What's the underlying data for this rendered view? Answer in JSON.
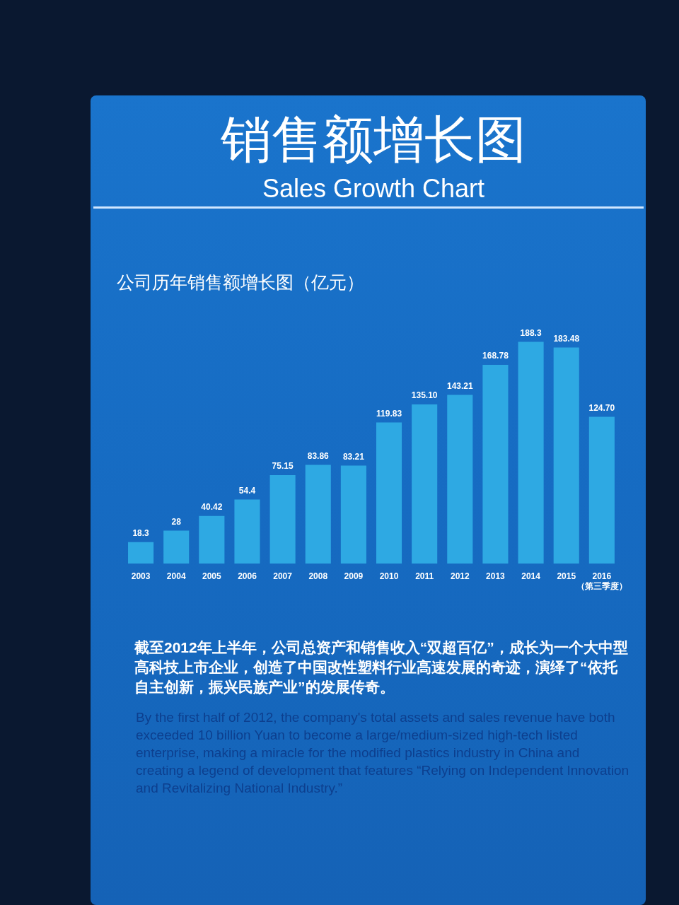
{
  "chart_data": {
    "type": "bar",
    "title": "销售额增长图",
    "subtitle": "Sales Growth Chart",
    "categories": [
      "2003",
      "2004",
      "2005",
      "2006",
      "2007",
      "2008",
      "2009",
      "2010",
      "2011",
      "2012",
      "2013",
      "2014",
      "2015",
      "2016\n（第三季度）"
    ],
    "values": [
      18.3,
      28,
      40.42,
      54.4,
      75.15,
      83.86,
      83.21,
      119.83,
      135.1,
      143.21,
      168.78,
      188.3,
      183.48,
      124.7
    ],
    "value_labels": [
      "18.3",
      "28",
      "40.42",
      "54.4",
      "75.15",
      "83.86",
      "83.21",
      "119.83",
      "135.10",
      "143.21",
      "168.78",
      "188.3",
      "183.48",
      "124.70"
    ],
    "color": "#2ea9e3",
    "tick_labels": "x",
    "annotations": [
      "公司历年销售额增长图（亿元）",
      "截至2012年上半年，公司总资产和销售收入“双超百亿”，成长为一个大中型高科技上市企业，创造了中国改性塑料行业高速发展的奇迹，演绎了“依托自主创新，振兴民族产业”的发展传奇。",
      "By the first half of 2012, the company's total assets and sales revenue have both exceeded 10 billion Yuan to become a large/medium-sized high-tech listed enterprise, making a miracle for the modified plastics industry in China and creating a legend of development that features “Relying on Independent Innovation and Revitalizing National Industry.”"
    ]
  }
}
